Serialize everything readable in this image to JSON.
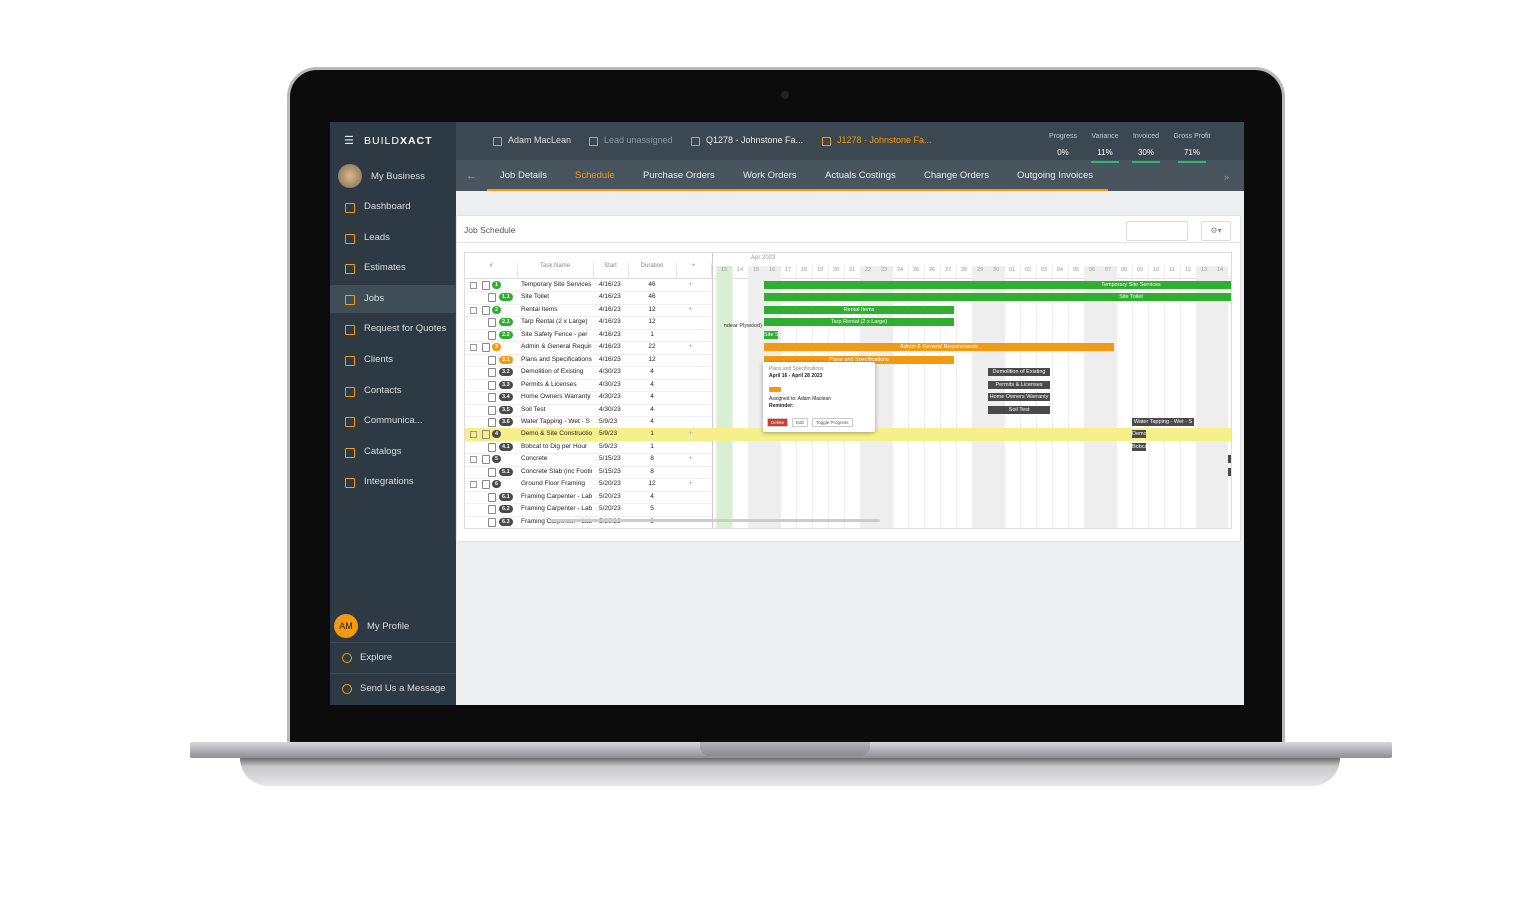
{
  "sidebar": {
    "brand": {
      "light": "BUILD",
      "bold": "XACT"
    },
    "business": "My Business",
    "nav": [
      {
        "label": "Dashboard"
      },
      {
        "label": "Leads"
      },
      {
        "label": "Estimates"
      },
      {
        "label": "Jobs",
        "active": true
      },
      {
        "label": "Request for Quotes"
      },
      {
        "label": "Clients"
      },
      {
        "label": "Contacts"
      },
      {
        "label": "Communica..."
      },
      {
        "label": "Catalogs"
      },
      {
        "label": "Integrations"
      }
    ],
    "profile": {
      "initials": "AM",
      "label": "My Profile"
    },
    "footer": [
      "Explore",
      "Send Us a Message"
    ]
  },
  "topbar": {
    "user": "Adam MacLean",
    "lead": "Lead unassigned",
    "quote": "Q1278 - Johnstone Fa...",
    "job": "J1278 - Johnstone Fa...",
    "stats": [
      {
        "label": "Progress",
        "value": "0%"
      },
      {
        "label": "Variance",
        "value": "11%"
      },
      {
        "label": "Invoiced",
        "value": "30%"
      },
      {
        "label": "Gross Profit",
        "value": "71%"
      }
    ]
  },
  "tabs": [
    {
      "label": "Job Details"
    },
    {
      "label": "Schedule",
      "active": true
    },
    {
      "label": "Purchase Orders"
    },
    {
      "label": "Work Orders"
    },
    {
      "label": "Actuals Costings"
    },
    {
      "label": "Change Orders"
    },
    {
      "label": "Outgoing Invoices"
    }
  ],
  "schedule": {
    "title": "Job Schedule",
    "columns": [
      "#",
      "Task Name",
      "Start",
      "Duration",
      "+"
    ],
    "month": "Apr 2023",
    "days": [
      "13",
      "14",
      "15",
      "16",
      "17",
      "18",
      "19",
      "20",
      "21",
      "22",
      "23",
      "24",
      "25",
      "26",
      "27",
      "28",
      "29",
      "30",
      "01",
      "02",
      "03",
      "04",
      "05",
      "06",
      "07",
      "08",
      "09",
      "10",
      "11",
      "12",
      "13",
      "14"
    ],
    "rows": [
      {
        "id": "1",
        "name": "Temporary Site Services",
        "start": "4/16/23",
        "duration": 46,
        "level": 0,
        "color": "#2fae2f"
      },
      {
        "id": "1.1",
        "name": "Site Toilet",
        "start": "4/16/23",
        "duration": 46,
        "level": 1,
        "color": "#2fae2f"
      },
      {
        "id": "2",
        "name": "Rental Items",
        "start": "4/16/23",
        "duration": 12,
        "level": 0,
        "color": "#2fae2f"
      },
      {
        "id": "2.1",
        "name": "Tarp Rental (2 x Large)",
        "start": "4/16/23",
        "duration": 12,
        "level": 1,
        "color": "#2fae2f"
      },
      {
        "id": "2.2",
        "name": "Site Safety Fence - per",
        "start": "4/16/23",
        "duration": 1,
        "level": 1,
        "color": "#2fae2f"
      },
      {
        "id": "3",
        "name": "Admin & General Requirements",
        "start": "4/16/23",
        "duration": 22,
        "level": 0,
        "color": "#f39a12"
      },
      {
        "id": "3.1",
        "name": "Plans and Specifications",
        "start": "4/16/23",
        "duration": 12,
        "level": 1,
        "color": "#f39a12"
      },
      {
        "id": "3.2",
        "name": "Demolition of Existing",
        "start": "4/30/23",
        "duration": 4,
        "level": 1,
        "color": "#4a4a4a"
      },
      {
        "id": "3.3",
        "name": "Permits & Licenses",
        "start": "4/30/23",
        "duration": 4,
        "level": 1,
        "color": "#4a4a4a"
      },
      {
        "id": "3.4",
        "name": "Home Owners Warranty",
        "start": "4/30/23",
        "duration": 4,
        "level": 1,
        "color": "#4a4a4a"
      },
      {
        "id": "3.5",
        "name": "Soil Test",
        "start": "4/30/23",
        "duration": 4,
        "level": 1,
        "color": "#4a4a4a"
      },
      {
        "id": "3.6",
        "name": "Water Tapping - Wet - S",
        "start": "5/9/23",
        "duration": 4,
        "level": 1,
        "color": "#4a4a4a"
      },
      {
        "id": "4",
        "name": "Demo & Site Construction",
        "start": "5/9/23",
        "duration": 1,
        "level": 0,
        "color": "#4a4a4a",
        "highlight": true
      },
      {
        "id": "4.1",
        "name": "Bobcat to Dig per Hour",
        "start": "5/9/23",
        "duration": 1,
        "level": 1,
        "color": "#4a4a4a"
      },
      {
        "id": "5",
        "name": "Concrete",
        "start": "5/15/23",
        "duration": 8,
        "level": 0,
        "color": "#4a4a4a"
      },
      {
        "id": "5.1",
        "name": "Concrete Slab (inc Footings)",
        "start": "5/15/23",
        "duration": 8,
        "level": 1,
        "color": "#4a4a4a"
      },
      {
        "id": "6",
        "name": "Ground Floor Framing",
        "start": "5/20/23",
        "duration": 12,
        "level": 0,
        "color": "#4a4a4a"
      },
      {
        "id": "6.1",
        "name": "Framing Carpenter - Labour",
        "start": "5/20/23",
        "duration": 4,
        "level": 1,
        "color": "#4a4a4a"
      },
      {
        "id": "6.2",
        "name": "Framing Carpenter - Labour",
        "start": "5/20/23",
        "duration": 5,
        "level": 1,
        "color": "#4a4a4a"
      },
      {
        "id": "6.3",
        "name": "Framing Carpenter - Labour",
        "start": "5/20/23",
        "duration": 3,
        "level": 1,
        "color": "#4a4a4a"
      }
    ],
    "note": "ndear Plywood)",
    "popup": {
      "title": "Plans and Specifications",
      "dates": "April 16 - April 28 2023",
      "assigned": "Assigned to: Adam Maclean",
      "reminder": "Reminder:",
      "buttons": [
        "Delete",
        "Edit",
        "Toggle Progress"
      ]
    }
  }
}
